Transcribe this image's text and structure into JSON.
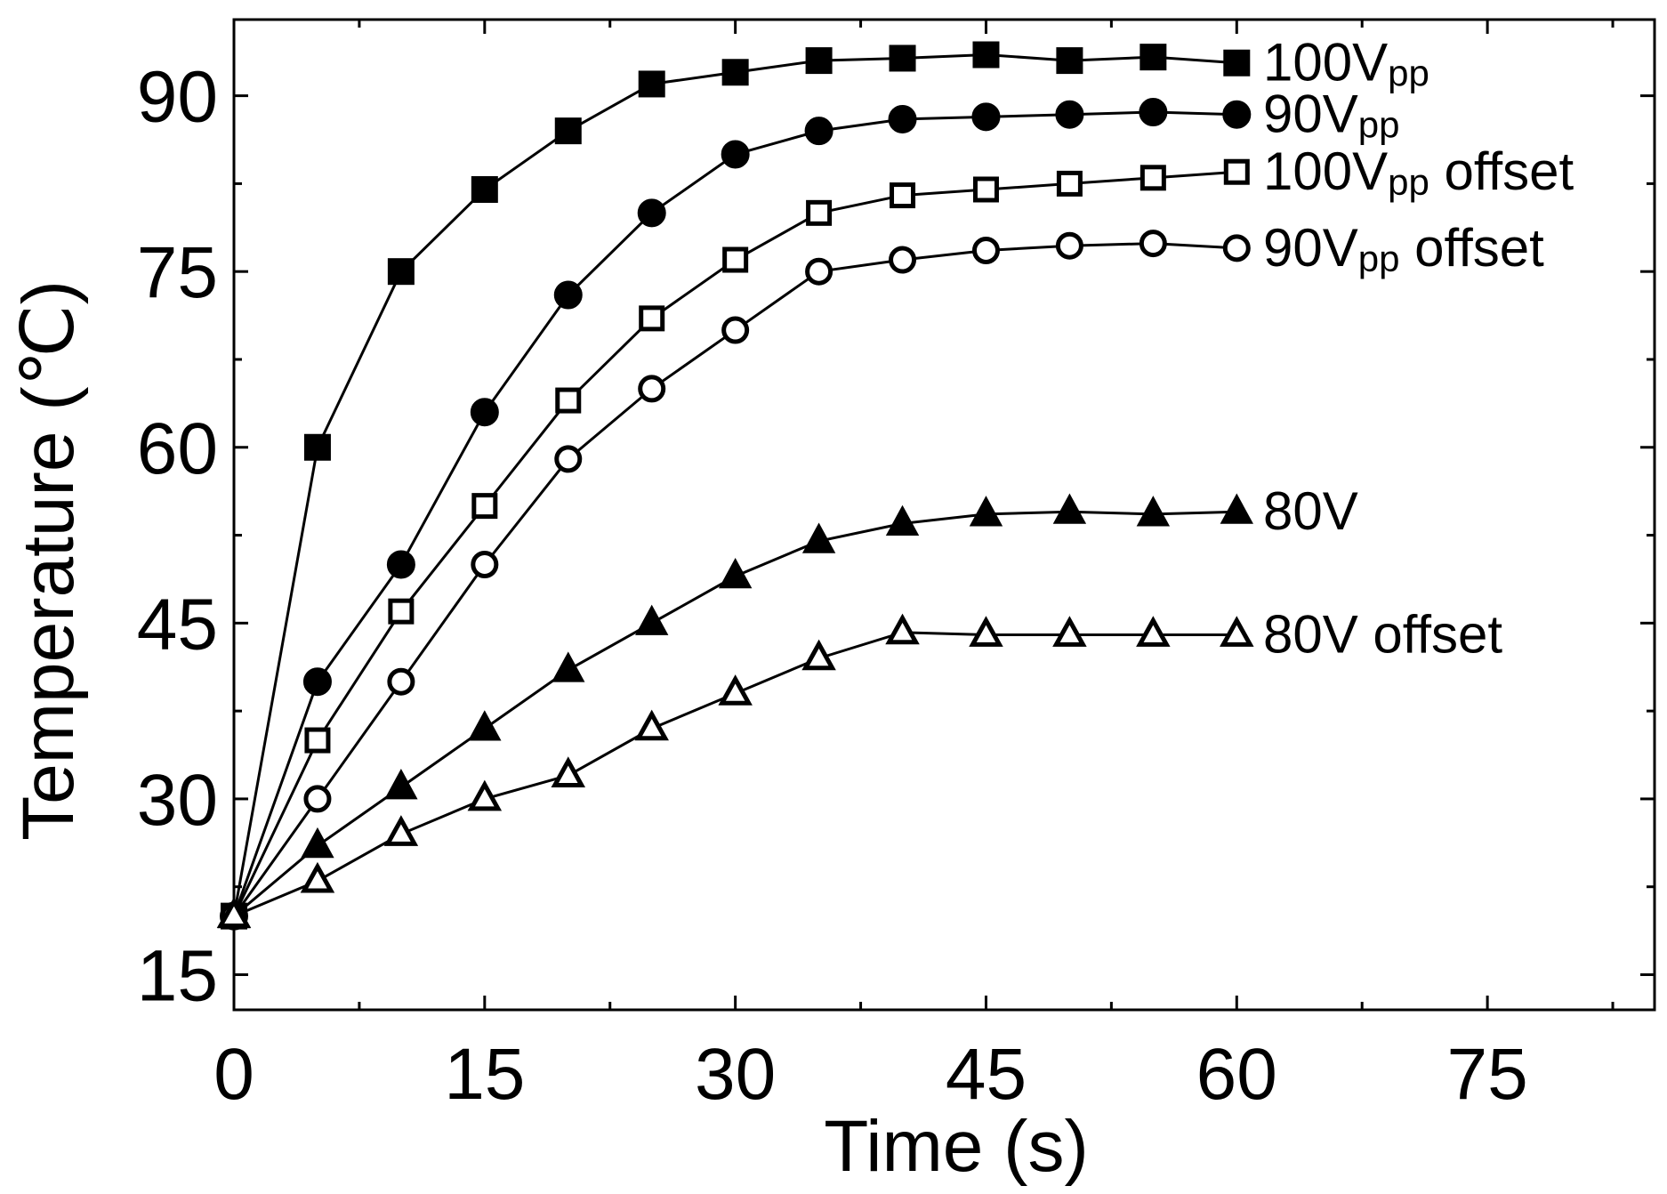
{
  "chart_data": {
    "type": "line",
    "title": "",
    "xlabel": "Time (s)",
    "ylabel": "Temperature (℃)",
    "xlim": [
      0,
      85
    ],
    "ylim": [
      12,
      96.5
    ],
    "x_ticks": [
      0,
      15,
      30,
      45,
      60,
      75
    ],
    "y_ticks": [
      15,
      30,
      45,
      60,
      75,
      90
    ],
    "grid": false,
    "legend_position": "inline-right",
    "x": [
      0,
      5,
      10,
      15,
      20,
      25,
      30,
      35,
      40,
      45,
      50,
      55,
      60
    ],
    "series": [
      {
        "name": "100Vpp",
        "label_main": "100V",
        "label_sub": "pp",
        "label_suffix": "",
        "marker": "square",
        "filled": true,
        "values": [
          20,
          60,
          75,
          82,
          87,
          91,
          92,
          93,
          93.2,
          93.5,
          93,
          93.3,
          92.8
        ]
      },
      {
        "name": "90Vpp",
        "label_main": "90V",
        "label_sub": "pp",
        "label_suffix": "",
        "marker": "circle",
        "filled": true,
        "values": [
          20,
          40,
          50,
          63,
          73,
          80,
          85,
          87,
          88,
          88.2,
          88.4,
          88.6,
          88.4
        ]
      },
      {
        "name": "100Vpp offset",
        "label_main": "100V",
        "label_sub": "pp",
        "label_suffix": " offset",
        "marker": "square",
        "filled": false,
        "values": [
          20,
          35,
          46,
          55,
          64,
          71,
          76,
          80,
          81.5,
          82,
          82.5,
          83,
          83.5
        ]
      },
      {
        "name": "90Vpp offset",
        "label_main": "90V",
        "label_sub": "pp",
        "label_suffix": " offset",
        "marker": "circle",
        "filled": false,
        "values": [
          20,
          30,
          40,
          50,
          59,
          65,
          70,
          75,
          76,
          76.8,
          77.2,
          77.4,
          77
        ]
      },
      {
        "name": "80V",
        "label_main": "80V",
        "label_sub": "",
        "label_suffix": "",
        "marker": "triangle",
        "filled": true,
        "values": [
          20,
          26,
          31,
          36,
          41,
          45,
          49,
          52,
          53.5,
          54.3,
          54.5,
          54.3,
          54.5
        ]
      },
      {
        "name": "80V offset",
        "label_main": "80V",
        "label_sub": "",
        "label_suffix": " offset",
        "marker": "triangle",
        "filled": false,
        "values": [
          20,
          23,
          27,
          30,
          32,
          36,
          39,
          42,
          44.2,
          44,
          44,
          44,
          44
        ]
      }
    ],
    "colors": {
      "line": "#000000",
      "marker_fill": "#000000",
      "marker_open_fill": "#ffffff",
      "axis": "#000000"
    }
  }
}
